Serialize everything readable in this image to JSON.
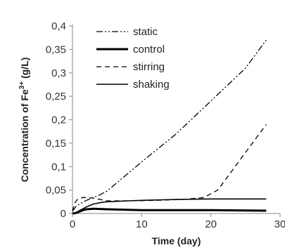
{
  "chart_data": {
    "type": "line",
    "xlabel": "Time (day)",
    "ylabel": "Concentration of Fe",
    "ylabel_sup": "3+",
    "ylabel_unit": " (g/L)",
    "xlim": [
      0,
      30
    ],
    "ylim": [
      0,
      0.4
    ],
    "x_ticks": [
      0,
      10,
      20,
      30
    ],
    "x_tick_labels": [
      "0",
      "10",
      "20",
      "30"
    ],
    "y_ticks": [
      0,
      0.05,
      0.1,
      0.15,
      0.2,
      0.25,
      0.3,
      0.35,
      0.4
    ],
    "y_tick_labels": [
      "0",
      "0,05",
      "0,1",
      "0,15",
      "0,2",
      "0,25",
      "0,3",
      "0,35",
      "0,4"
    ],
    "grid": false,
    "legend_position": "top-left",
    "series": [
      {
        "name": "static",
        "style": "dash-dot-dot",
        "width": 1.3,
        "x": [
          0,
          0.5,
          1,
          1.5,
          2,
          3,
          4,
          5,
          10,
          15,
          20,
          25,
          28
        ],
        "y": [
          0.005,
          0.015,
          0.02,
          0.024,
          0.028,
          0.034,
          0.04,
          0.048,
          0.11,
          0.17,
          0.24,
          0.31,
          0.37
        ]
      },
      {
        "name": "control",
        "style": "solid",
        "width": 3,
        "x": [
          0,
          0.5,
          1,
          1.5,
          2,
          3,
          5,
          8,
          10,
          15,
          20,
          28
        ],
        "y": [
          0,
          0.001,
          0.004,
          0.007,
          0.009,
          0.01,
          0.009,
          0.008,
          0.007,
          0.007,
          0.007,
          0.006
        ]
      },
      {
        "name": "stirring",
        "style": "dashed",
        "width": 1.3,
        "x": [
          0,
          0.3,
          0.7,
          1,
          1.5,
          2,
          3,
          4,
          5,
          8,
          12,
          16,
          19,
          21,
          23,
          25,
          27,
          28
        ],
        "y": [
          0.005,
          0.022,
          0.03,
          0.032,
          0.034,
          0.034,
          0.033,
          0.03,
          0.027,
          0.027,
          0.028,
          0.03,
          0.034,
          0.05,
          0.09,
          0.13,
          0.17,
          0.19
        ]
      },
      {
        "name": "shaking",
        "style": "solid",
        "width": 1.6,
        "x": [
          0,
          0.5,
          1,
          1.5,
          2,
          3,
          4,
          5,
          8,
          10,
          15,
          20,
          28
        ],
        "y": [
          0,
          0.002,
          0.006,
          0.01,
          0.014,
          0.02,
          0.023,
          0.025,
          0.027,
          0.028,
          0.03,
          0.031,
          0.031
        ]
      }
    ]
  }
}
